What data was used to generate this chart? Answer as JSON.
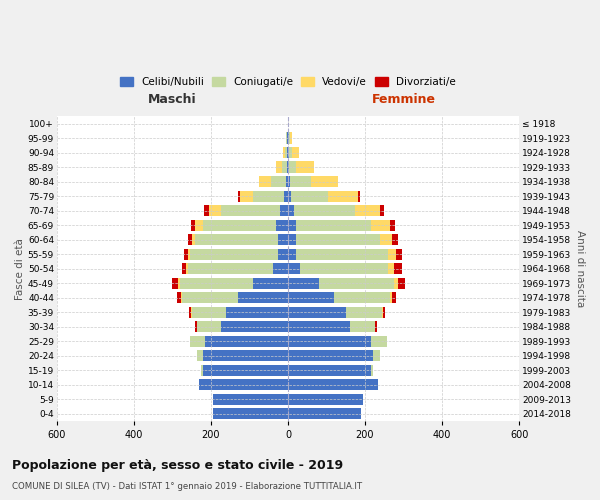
{
  "age_groups": [
    "0-4",
    "5-9",
    "10-14",
    "15-19",
    "20-24",
    "25-29",
    "30-34",
    "35-39",
    "40-44",
    "45-49",
    "50-54",
    "55-59",
    "60-64",
    "65-69",
    "70-74",
    "75-79",
    "80-84",
    "85-89",
    "90-94",
    "95-99",
    "100+"
  ],
  "birth_years": [
    "2014-2018",
    "2009-2013",
    "2004-2008",
    "1999-2003",
    "1994-1998",
    "1989-1993",
    "1984-1988",
    "1979-1983",
    "1974-1978",
    "1969-1973",
    "1964-1968",
    "1959-1963",
    "1954-1958",
    "1949-1953",
    "1944-1948",
    "1939-1943",
    "1934-1938",
    "1929-1933",
    "1924-1928",
    "1919-1923",
    "≤ 1918"
  ],
  "male_celibe": [
    195,
    195,
    230,
    220,
    220,
    215,
    175,
    160,
    130,
    90,
    40,
    25,
    25,
    30,
    20,
    10,
    5,
    3,
    3,
    2,
    0
  ],
  "male_coniugato": [
    0,
    0,
    0,
    5,
    15,
    40,
    60,
    90,
    145,
    190,
    220,
    230,
    215,
    190,
    155,
    80,
    40,
    12,
    5,
    2,
    0
  ],
  "male_vedovo": [
    0,
    0,
    0,
    0,
    0,
    0,
    2,
    2,
    3,
    5,
    5,
    5,
    10,
    20,
    30,
    35,
    30,
    15,
    5,
    2,
    0
  ],
  "male_divorziato": [
    0,
    0,
    0,
    0,
    0,
    0,
    3,
    5,
    10,
    15,
    10,
    10,
    10,
    12,
    12,
    5,
    0,
    0,
    0,
    0,
    0
  ],
  "female_celibe": [
    190,
    195,
    235,
    215,
    220,
    215,
    160,
    150,
    120,
    80,
    30,
    20,
    20,
    20,
    15,
    8,
    5,
    4,
    3,
    2,
    0
  ],
  "female_coniugata": [
    0,
    0,
    0,
    5,
    18,
    42,
    65,
    95,
    145,
    195,
    230,
    240,
    220,
    195,
    160,
    95,
    55,
    18,
    8,
    3,
    0
  ],
  "female_vedova": [
    0,
    0,
    0,
    0,
    0,
    0,
    2,
    3,
    5,
    10,
    15,
    20,
    30,
    50,
    65,
    80,
    70,
    45,
    18,
    5,
    1
  ],
  "female_divorziata": [
    0,
    0,
    0,
    0,
    0,
    0,
    3,
    5,
    10,
    20,
    20,
    15,
    15,
    12,
    10,
    5,
    0,
    0,
    0,
    0,
    0
  ],
  "colors": {
    "celibe": "#4472C4",
    "coniugato": "#C5D9A0",
    "vedovo": "#FFD966",
    "divorziato": "#CC0000"
  },
  "title": "Popolazione per età, sesso e stato civile - 2019",
  "subtitle": "COMUNE DI SILEA (TV) - Dati ISTAT 1° gennaio 2019 - Elaborazione TUTTITALIA.IT",
  "xlabel_left": "Maschi",
  "xlabel_right": "Femmine",
  "ylabel_left": "Fasce di età",
  "ylabel_right": "Anni di nascita",
  "xlim": 600,
  "legend_labels": [
    "Celibi/Nubili",
    "Coniugati/e",
    "Vedovi/e",
    "Divorziati/e"
  ],
  "bg_color": "#f0f0f0",
  "plot_bg": "#ffffff"
}
